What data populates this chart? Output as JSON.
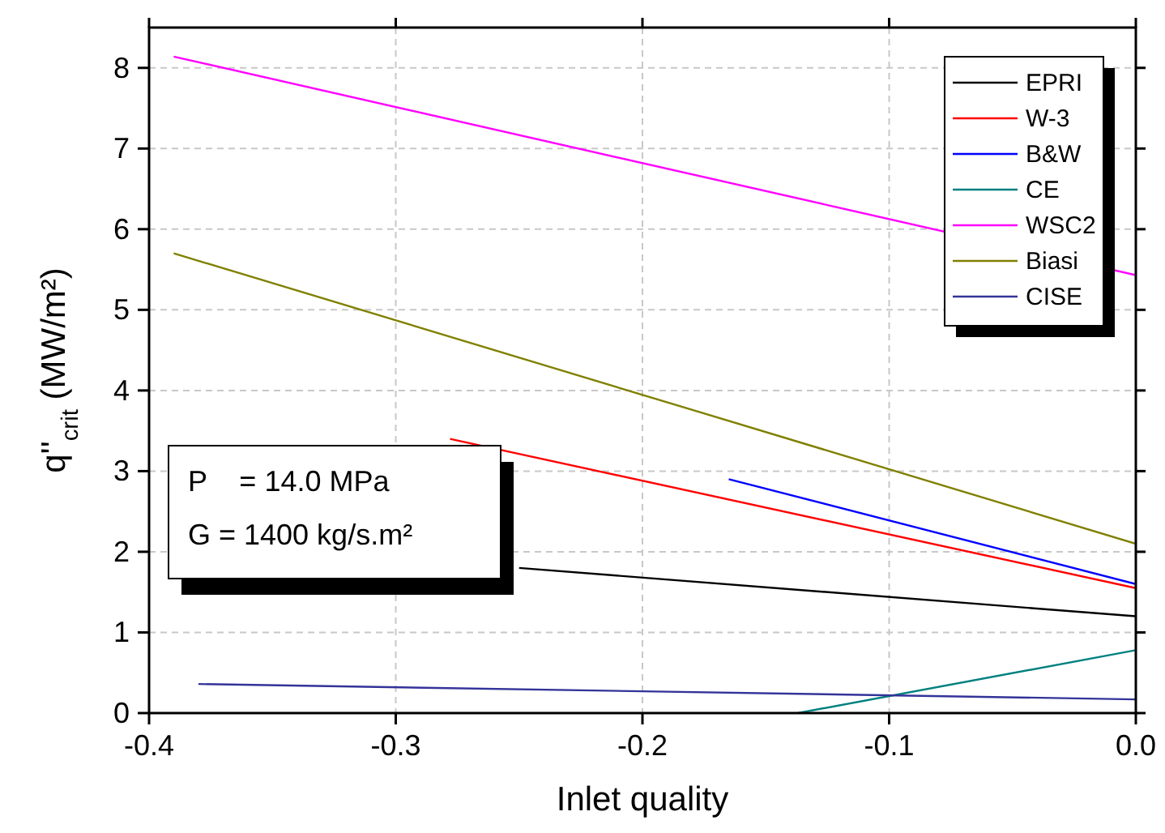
{
  "chart_data": {
    "type": "line",
    "xlabel": "Inlet quality",
    "ylabel": "q''$_{crit}$ (MW/m²)",
    "xlim": [
      -0.4,
      0
    ],
    "ylim": [
      0,
      8.5
    ],
    "xticks": [
      -0.4,
      -0.3,
      -0.2,
      -0.1,
      {
        "value": 0,
        "label": "0.0"
      }
    ],
    "yticks": [
      0,
      1,
      2,
      3,
      4,
      5,
      6,
      7,
      8
    ],
    "grid": true,
    "legend": "top right",
    "line_style": "solid",
    "marker": "none",
    "annotations": [
      "P    = 14.0 MPa",
      "G = 1400 kg/s.m²"
    ],
    "series": [
      {
        "name": "EPRI",
        "color": "#000000",
        "x": [
          -0.25,
          0
        ],
        "values": [
          1.8,
          1.2
        ]
      },
      {
        "name": "W-3",
        "color": "#ff0000",
        "x": [
          -0.278,
          0
        ],
        "values": [
          3.4,
          1.55
        ]
      },
      {
        "name": "B&W",
        "color": "#0000ff",
        "x": [
          -0.165,
          0
        ],
        "values": [
          2.9,
          1.6
        ]
      },
      {
        "name": "CE",
        "color": "#008080",
        "x": [
          -0.137,
          0
        ],
        "values": [
          0,
          0.78
        ]
      },
      {
        "name": "WSC2",
        "color": "#ff00ff",
        "x": [
          -0.39,
          0
        ],
        "values": [
          8.14,
          5.43
        ]
      },
      {
        "name": "Biasi",
        "color": "#808000",
        "x": [
          -0.39,
          0
        ],
        "values": [
          5.7,
          2.1
        ]
      },
      {
        "name": "CISE",
        "color": "#333399",
        "x": [
          -0.38,
          0
        ],
        "values": [
          0.36,
          0.17
        ]
      }
    ]
  }
}
